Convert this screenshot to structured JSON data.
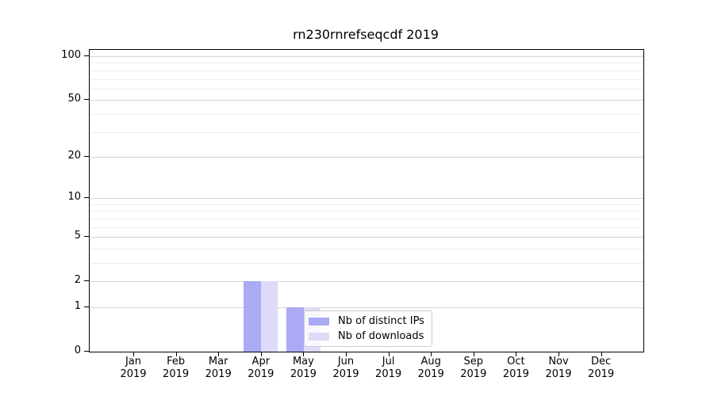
{
  "chart_data": {
    "type": "bar",
    "title": "rn230rnrefseqcdf 2019",
    "categories": [
      "Jan 2019",
      "Feb 2019",
      "Mar 2019",
      "Apr 2019",
      "May 2019",
      "Jun 2019",
      "Jul 2019",
      "Aug 2019",
      "Sep 2019",
      "Oct 2019",
      "Nov 2019",
      "Dec 2019"
    ],
    "series": [
      {
        "name": "Nb of distinct IPs",
        "color": "#aaaaf5",
        "values": [
          0,
          0,
          0,
          2,
          1,
          0,
          0,
          0,
          0,
          0,
          0,
          0
        ]
      },
      {
        "name": "Nb of downloads",
        "color": "#dcdcf8",
        "values": [
          0,
          0,
          0,
          2,
          1,
          0,
          0,
          0,
          0,
          0,
          0,
          0
        ]
      }
    ],
    "xlabel": "",
    "ylabel": "",
    "y_scale": "log10(1+x)",
    "ylim": [
      0,
      111
    ],
    "y_ticks": [
      0,
      1,
      2,
      5,
      10,
      20,
      50,
      100
    ],
    "y_minor_gridlines": [
      3,
      4,
      6,
      7,
      8,
      9,
      30,
      40,
      60,
      70,
      80,
      90
    ],
    "grid": "horizontal",
    "legend_position": "inside lower-center"
  }
}
